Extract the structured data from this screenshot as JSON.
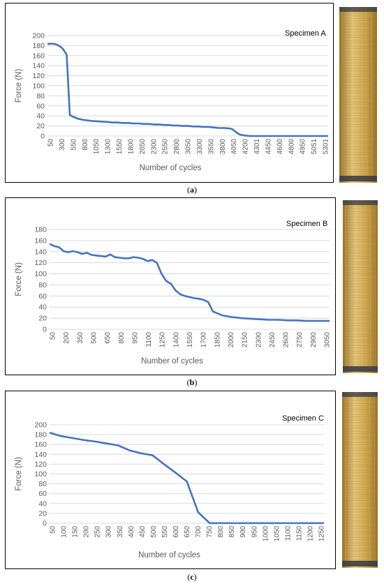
{
  "figure": {
    "panels": [
      {
        "caption_letter": "a"
      },
      {
        "caption_letter": "b"
      },
      {
        "caption_letter": "c"
      }
    ],
    "line_color": "#4472C4",
    "photo_colors": {
      "base": "#c9a24a",
      "light": "#e3c47a",
      "dark": "#9a7428",
      "tab": "#333a44"
    }
  },
  "chart_data": [
    {
      "type": "line",
      "legend_text": "Specimen A",
      "xlabel": "Number of cycles",
      "ylabel": "Force (N)",
      "ylim": [
        0,
        200
      ],
      "yticks": [
        0,
        20,
        40,
        60,
        80,
        100,
        120,
        140,
        160,
        180,
        200
      ],
      "xlim": [
        50,
        5450
      ],
      "xtick_labels": [
        "50",
        "300",
        "550",
        "800",
        "1050",
        "1300",
        "1550",
        "1800",
        "2050",
        "2300",
        "2550",
        "2800",
        "3050",
        "3300",
        "3550",
        "3800",
        "4050",
        "4200",
        "4301",
        "4450",
        "4600",
        "4800",
        "4950",
        "5051",
        "5301"
      ],
      "x": [
        50,
        120,
        200,
        250,
        300,
        350,
        420,
        480,
        550,
        650,
        750,
        900,
        1050,
        1200,
        1300,
        1400,
        1500,
        1600,
        1700,
        1800,
        1900,
        2000,
        2100,
        2200,
        2300,
        2400,
        2450,
        2550,
        2650,
        2750,
        2850,
        2950,
        3050,
        3150,
        3250,
        3350,
        3450,
        3550,
        3600,
        3650,
        3700,
        3750,
        3800,
        3850,
        3950,
        4050,
        4200,
        4500,
        5000,
        5450
      ],
      "values": [
        183,
        184,
        183,
        181,
        178,
        173,
        162,
        42,
        38,
        34,
        32,
        30,
        29,
        28,
        27,
        27,
        26,
        26,
        25,
        25,
        24,
        24,
        23,
        23,
        22,
        22,
        21,
        21,
        20,
        20,
        19,
        19,
        18,
        18,
        17,
        16,
        16,
        15,
        14,
        10,
        6,
        3,
        2,
        1,
        0,
        0,
        0,
        0,
        0,
        0
      ]
    },
    {
      "type": "line",
      "legend_text": "Specimen B",
      "xlabel": "Number of cycles",
      "ylabel": "Force (N)",
      "ylim": [
        0,
        180
      ],
      "yticks": [
        0,
        20,
        40,
        60,
        80,
        100,
        120,
        140,
        160,
        180
      ],
      "xlim": [
        50,
        3050
      ],
      "xtick_labels": [
        "50",
        "200",
        "350",
        "500",
        "650",
        "800",
        "950",
        "1100",
        "1250",
        "1400",
        "1550",
        "1700",
        "1850",
        "2000",
        "2150",
        "2300",
        "2450",
        "2600",
        "2750",
        "2900",
        "3050"
      ],
      "x": [
        50,
        100,
        150,
        200,
        250,
        300,
        350,
        400,
        450,
        500,
        550,
        600,
        650,
        700,
        750,
        800,
        850,
        900,
        950,
        1000,
        1050,
        1100,
        1150,
        1200,
        1250,
        1300,
        1350,
        1400,
        1450,
        1500,
        1550,
        1600,
        1650,
        1700,
        1750,
        1800,
        1900,
        2000,
        2100,
        2200,
        2300,
        2400,
        2500,
        2600,
        2700,
        2800,
        2900,
        3000,
        3050
      ],
      "values": [
        154,
        150,
        148,
        141,
        139,
        141,
        139,
        136,
        138,
        134,
        133,
        132,
        131,
        135,
        130,
        129,
        128,
        128,
        130,
        129,
        127,
        123,
        125,
        120,
        100,
        87,
        82,
        70,
        63,
        60,
        58,
        56,
        55,
        53,
        49,
        32,
        25,
        22,
        20,
        19,
        18,
        17,
        17,
        16,
        16,
        15,
        15,
        15,
        15
      ]
    },
    {
      "type": "line",
      "legend_text": "Specimen C",
      "xlabel": "Number of cycles",
      "ylabel": "Force (N)",
      "ylim": [
        0,
        200
      ],
      "yticks": [
        0,
        20,
        40,
        60,
        80,
        100,
        120,
        140,
        160,
        180,
        200
      ],
      "xlim": [
        50,
        1250
      ],
      "xtick_labels": [
        "50",
        "100",
        "150",
        "200",
        "250",
        "300",
        "350",
        "400",
        "450",
        "500",
        "550",
        "600",
        "650",
        "700",
        "750",
        "800",
        "850",
        "900",
        "950",
        "1000",
        "1050",
        "1100",
        "1150",
        "1200",
        "1250"
      ],
      "x": [
        50,
        100,
        150,
        200,
        250,
        300,
        350,
        400,
        450,
        500,
        550,
        600,
        650,
        700,
        750,
        800,
        850,
        900,
        950,
        1000,
        1050,
        1100,
        1150,
        1200,
        1250
      ],
      "values": [
        184,
        177,
        173,
        169,
        166,
        162,
        158,
        148,
        142,
        138,
        120,
        103,
        85,
        22,
        0,
        0,
        0,
        0,
        0,
        0,
        0,
        0,
        0,
        0,
        0
      ]
    }
  ]
}
